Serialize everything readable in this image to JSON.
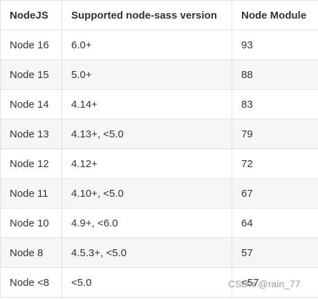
{
  "table": {
    "header": [
      "NodeJS",
      "Supported node-sass version",
      "Node Module"
    ],
    "rows": [
      [
        "Node 16",
        "6.0+",
        "93"
      ],
      [
        "Node 15",
        "5.0+",
        "88"
      ],
      [
        "Node 14",
        "4.14+",
        "83"
      ],
      [
        "Node 13",
        "4.13+, <5.0",
        "79"
      ],
      [
        "Node 12",
        "4.12+",
        "72"
      ],
      [
        "Node 11",
        "4.10+, <5.0",
        "67"
      ],
      [
        "Node 10",
        "4.9+, <6.0",
        "64"
      ],
      [
        "Node 8",
        "4.5.3+, <5.0",
        "57"
      ],
      [
        "Node <8",
        "<5.0",
        "<57"
      ]
    ]
  },
  "watermark": "CSDN @rain_77"
}
